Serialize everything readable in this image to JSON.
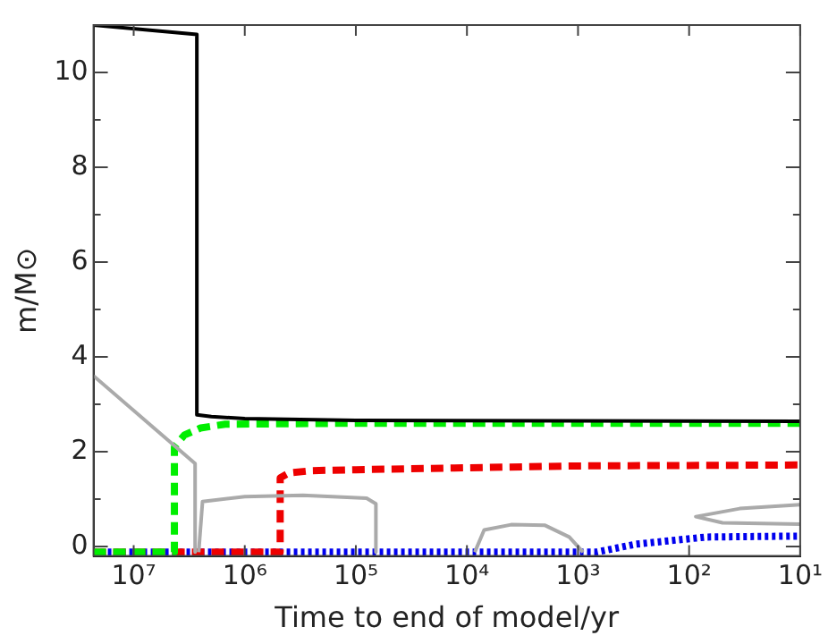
{
  "chart_data": {
    "type": "line",
    "xlabel": "Time to end of model/yr",
    "ylabel": "m/M⊙",
    "log": "x",
    "xlim": [
      23000000.0,
      10
    ],
    "ylim": [
      -0.2,
      11
    ],
    "xticks": [
      {
        "value": 10000000.0,
        "label": "10⁷"
      },
      {
        "value": 1000000.0,
        "label": "10⁶"
      },
      {
        "value": 100000.0,
        "label": "10⁵"
      },
      {
        "value": 10000.0,
        "label": "10⁴"
      },
      {
        "value": 1000.0,
        "label": "10³"
      },
      {
        "value": 100.0,
        "label": "10²"
      },
      {
        "value": 10,
        "label": "10¹"
      }
    ],
    "yticks": [
      0,
      {
        "value": 1,
        "label": null
      },
      2,
      {
        "value": 3,
        "label": null
      },
      4,
      {
        "value": 5,
        "label": null
      },
      6,
      {
        "value": 7,
        "label": null
      },
      8,
      {
        "value": 9,
        "label": null
      },
      10
    ],
    "grid": false,
    "legend": false,
    "marker": "none",
    "series": [
      {
        "color": "#aaaaaa",
        "line_style": "solid",
        "x": [
          23000000.0,
          2800000.0,
          2800000.0
        ],
        "values": [
          3.6,
          1.75,
          -0.12
        ]
      },
      {
        "color": "#aaaaaa",
        "line_style": "solid",
        "x": [
          2600000.0,
          2400000.0,
          1000000.0,
          300000.0,
          80000.0,
          66000.0,
          66000.0
        ],
        "values": [
          -0.12,
          0.95,
          1.05,
          1.08,
          1.02,
          0.9,
          -0.12
        ]
      },
      {
        "color": "#aaaaaa",
        "line_style": "solid",
        "x": [
          8500.0,
          7000.0,
          4000.0,
          2000.0,
          1200.0,
          900
        ],
        "values": [
          -0.12,
          0.35,
          0.46,
          0.45,
          0.2,
          -0.12
        ]
      },
      {
        "color": "#aaaaaa",
        "line_style": "solid",
        "x": [
          10,
          35,
          87,
          50,
          10
        ],
        "values": [
          0.88,
          0.8,
          0.63,
          0.5,
          0.47
        ]
      },
      {
        "color": "#000000",
        "line_style": "solid",
        "x": [
          23000000.0,
          2700000.0,
          2700000.0,
          2000000.0,
          1000000.0,
          100000.0,
          10
        ],
        "values": [
          11,
          10.8,
          2.78,
          2.74,
          2.7,
          2.66,
          2.64
        ]
      },
      {
        "color": "#00ee00",
        "line_style": "dashed",
        "x": [
          23000000.0,
          4300000.0,
          4300000.0,
          3500000.0,
          2500000.0,
          1500000.0,
          100000.0,
          10
        ],
        "values": [
          -0.12,
          -0.12,
          2.1,
          2.35,
          2.5,
          2.58,
          2.6,
          2.6
        ]
      },
      {
        "color": "#ee0000",
        "line_style": "dashed",
        "x": [
          23000000.0,
          480000.0,
          480000.0,
          400000.0,
          250000.0,
          100000.0,
          10000.0,
          1000.0,
          10
        ],
        "values": [
          -0.12,
          -0.12,
          1.45,
          1.55,
          1.6,
          1.62,
          1.66,
          1.7,
          1.72
        ]
      },
      {
        "color": "#0000ee",
        "line_style": "dotted",
        "x": [
          23000000.0,
          690,
          300,
          70,
          10
        ],
        "values": [
          -0.12,
          -0.12,
          0.05,
          0.2,
          0.22
        ]
      }
    ]
  }
}
